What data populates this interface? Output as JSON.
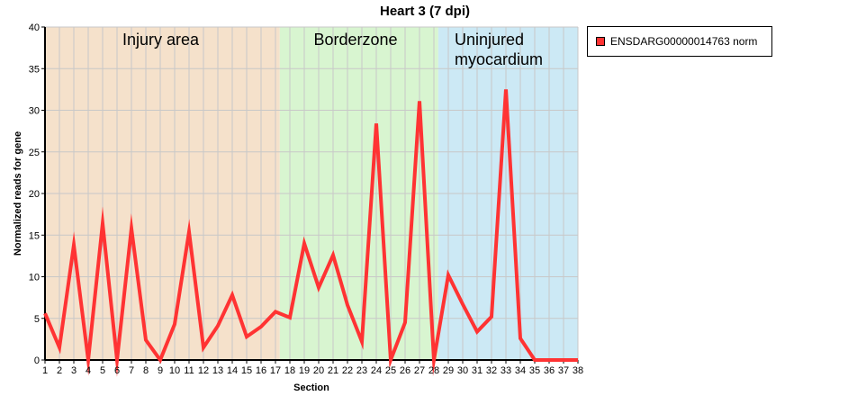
{
  "chart_data": {
    "type": "line",
    "title": "Heart 3 (7 dpi)",
    "xlabel": "Section",
    "ylabel": "Normalized reads for gene",
    "xlim": [
      1,
      38
    ],
    "ylim": [
      0,
      40
    ],
    "yticks": [
      0,
      5,
      10,
      15,
      20,
      25,
      30,
      35,
      40
    ],
    "grid": true,
    "legend_position": "right",
    "x": [
      1,
      2,
      3,
      4,
      5,
      6,
      7,
      8,
      9,
      10,
      11,
      12,
      13,
      14,
      15,
      16,
      17,
      18,
      19,
      20,
      21,
      22,
      23,
      24,
      25,
      26,
      27,
      28,
      29,
      30,
      31,
      32,
      33,
      34,
      35,
      36,
      37,
      38
    ],
    "series": [
      {
        "name": "ENSDARG00000014763 norm",
        "color": "#ff3333",
        "values": [
          5.6,
          1.5,
          13.8,
          0,
          16.4,
          0,
          15.8,
          2.4,
          0,
          4.3,
          15.4,
          1.5,
          4.1,
          7.8,
          2.8,
          4.0,
          5.8,
          5.1,
          14.0,
          8.7,
          12.6,
          6.6,
          2.2,
          28.4,
          0,
          4.5,
          31.1,
          0,
          10.2,
          6.7,
          3.4,
          5.2,
          32.5,
          2.6,
          0,
          0,
          0,
          0
        ]
      }
    ],
    "regions": [
      {
        "label": "Injury area",
        "from": 1,
        "to": 17.3,
        "color": "#f5e1cb"
      },
      {
        "label": "Borderzone",
        "from": 17.3,
        "to": 28.3,
        "color": "#d8f5d0"
      },
      {
        "label": "Uninjured myocardium",
        "label_lines": [
          "Uninjured",
          "myocardium"
        ],
        "from": 28.3,
        "to": 38,
        "color": "#cce9f5"
      }
    ]
  }
}
